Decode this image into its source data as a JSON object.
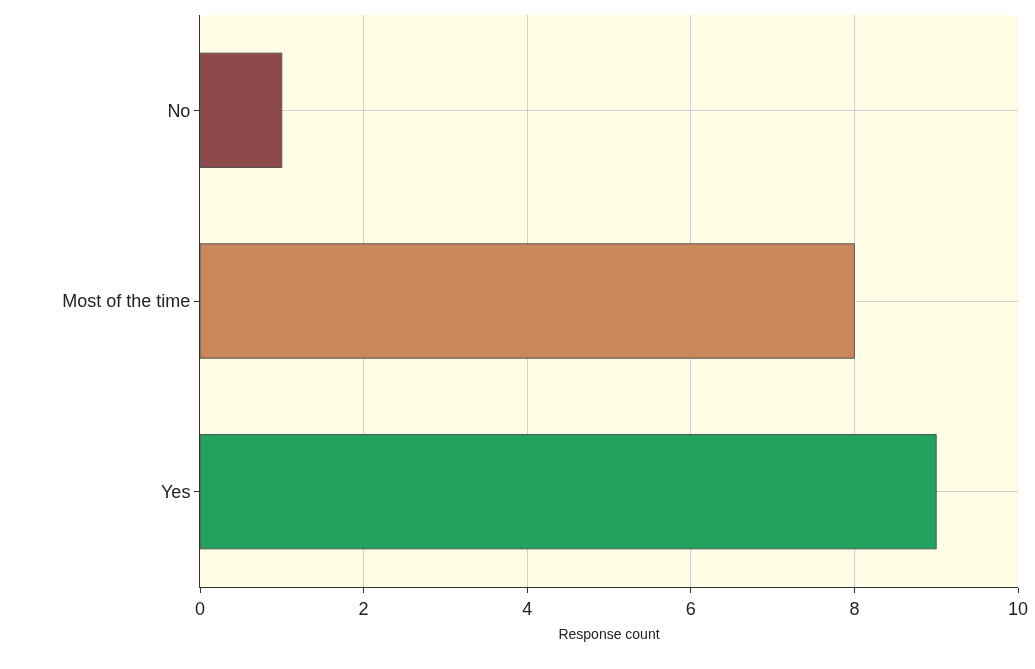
{
  "chart_data": {
    "type": "bar",
    "orientation": "horizontal",
    "categories": [
      "No",
      "Most of the time",
      "Yes"
    ],
    "values": [
      1,
      8,
      9
    ],
    "colors": [
      "#8e4a4a",
      "#c9875a",
      "#22a25c"
    ],
    "xlabel": "Response count",
    "xlim": [
      0,
      10
    ],
    "xticks": [
      0,
      2,
      4,
      6,
      8,
      10
    ],
    "grid": true
  }
}
